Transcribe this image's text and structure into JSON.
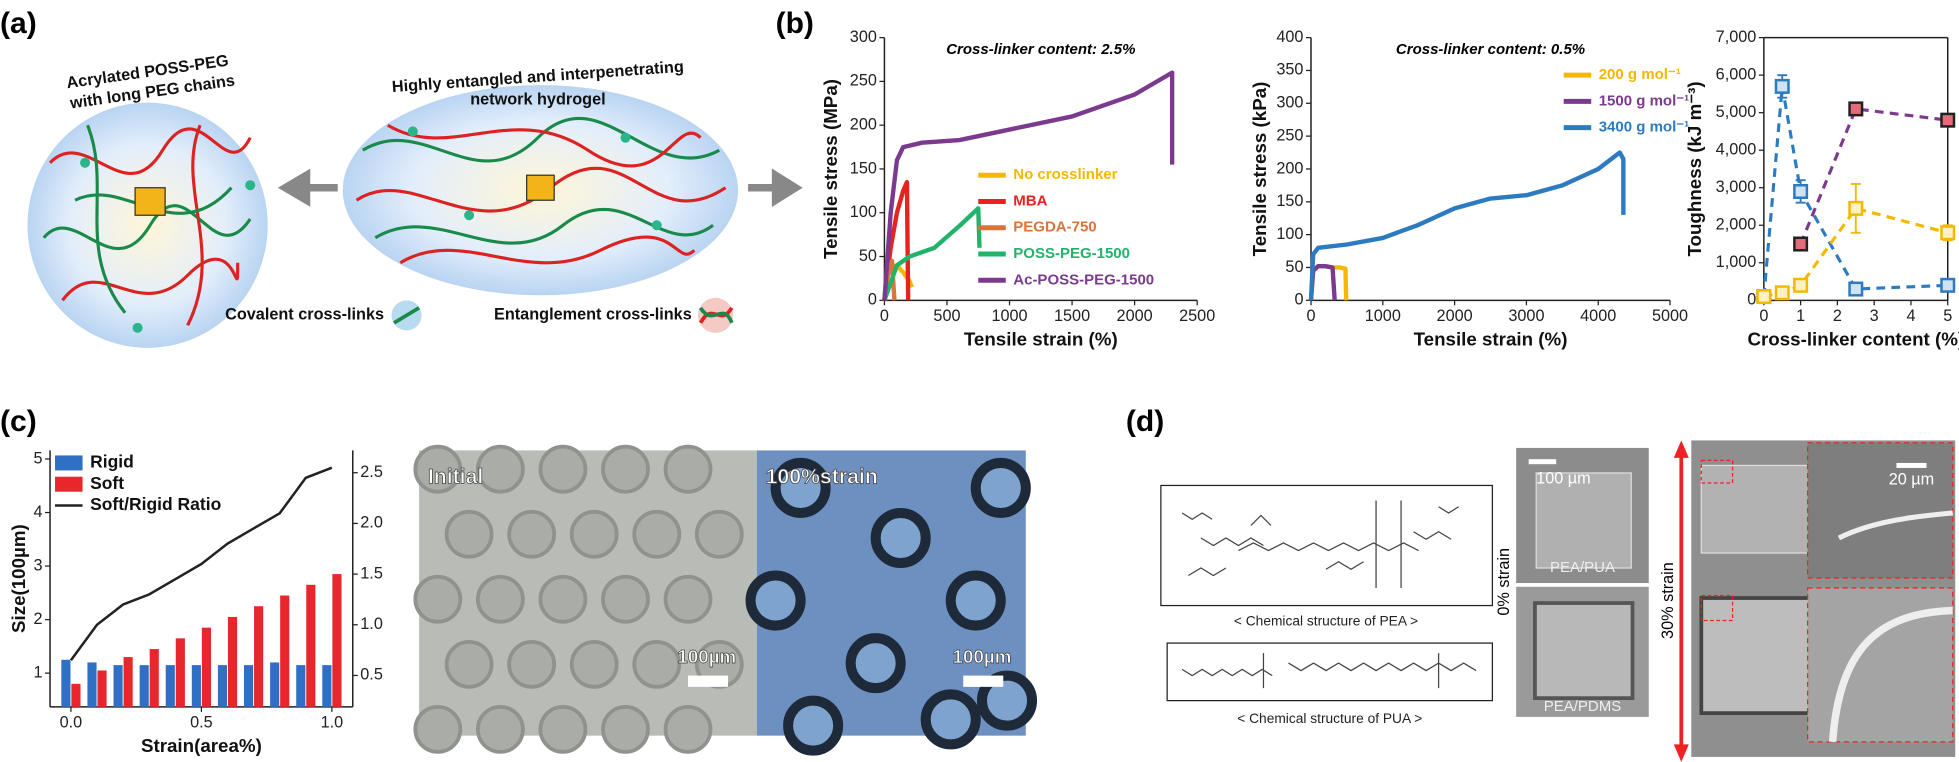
{
  "panel_labels": [
    "(a)",
    "(b)",
    "(c)",
    "(d)"
  ],
  "diagram": {
    "left_title": [
      "Acrylated POSS-PEG",
      "with long PEG chains"
    ],
    "right_title": [
      "Highly entangled and interpenetrating",
      "network hydrogel"
    ],
    "covalent": "Covalent cross-links",
    "entanglement": "Entanglement cross-links"
  },
  "micrographs": {
    "initial": "Initial",
    "strained": "100%strain",
    "scale_left": "100µm",
    "scale_right": "100µm"
  },
  "panel_d": {
    "pea_caption": "< Chemical structure of PEA >",
    "pua_caption": "< Chemical structure of PUA >",
    "scale_small": "100 µm",
    "top_sample": "PEA/PUA",
    "bottom_sample": "PEA/PDMS",
    "strain_0": "0% strain",
    "strain_30": "30% strain",
    "scale_zoom": "20 µm"
  },
  "chart_data": [
    {
      "type": "line",
      "annotation": "Cross-linker content: 2.5%",
      "xlabel": "Tensile strain (%)",
      "ylabel": "Tensile stress (MPa)",
      "xlim": [
        0,
        2500
      ],
      "xticks": [
        0,
        500,
        1000,
        1500,
        2000,
        2500
      ],
      "ylim": [
        0,
        300
      ],
      "yticks": [
        0,
        50,
        100,
        150,
        200,
        250,
        300
      ],
      "legend": "lower right",
      "series": [
        {
          "name": "No crosslinker",
          "color": "#f5b800",
          "x": [
            0,
            20,
            60,
            100,
            150,
            200,
            220
          ],
          "values": [
            0,
            28,
            38,
            40,
            32,
            22,
            15
          ]
        },
        {
          "name": "MBA",
          "color": "#e8231f",
          "x": [
            0,
            50,
            100,
            150,
            180,
            185,
            190
          ],
          "values": [
            0,
            60,
            100,
            125,
            135,
            60,
            0
          ]
        },
        {
          "name": "PEGDA-750",
          "color": "#d9743a",
          "x": [
            0,
            30,
            60,
            80
          ],
          "values": [
            0,
            30,
            45,
            0
          ]
        },
        {
          "name": "POSS-PEG-1500",
          "color": "#22b36b",
          "x": [
            0,
            100,
            200,
            400,
            600,
            750,
            760
          ],
          "values": [
            0,
            40,
            50,
            60,
            85,
            105,
            60
          ]
        },
        {
          "name": "Ac-POSS-PEG-1500",
          "color": "#7b3a8e",
          "x": [
            0,
            50,
            100,
            150,
            300,
            600,
            1000,
            1500,
            2000,
            2300,
            2300
          ],
          "values": [
            0,
            100,
            160,
            175,
            180,
            183,
            195,
            210,
            235,
            260,
            155
          ]
        }
      ]
    },
    {
      "type": "line",
      "annotation": "Cross-linker content: 0.5%",
      "xlabel": "Tensile strain (%)",
      "ylabel": "Tensile stress (kPa)",
      "xlim": [
        0,
        5000
      ],
      "xticks": [
        0,
        1000,
        2000,
        3000,
        4000,
        5000
      ],
      "ylim": [
        0,
        400
      ],
      "yticks": [
        0,
        50,
        100,
        150,
        200,
        250,
        300,
        350,
        400
      ],
      "legend": "upper right",
      "series": [
        {
          "name": "200 g mol⁻¹",
          "color": "#f5b800",
          "x": [
            0,
            30,
            100,
            200,
            300,
            400,
            480,
            490
          ],
          "values": [
            0,
            45,
            52,
            52,
            50,
            50,
            48,
            0
          ]
        },
        {
          "name": "1500 g mol⁻¹",
          "color": "#7b3a8e",
          "x": [
            0,
            30,
            100,
            200,
            300,
            330
          ],
          "values": [
            0,
            45,
            52,
            52,
            50,
            0
          ]
        },
        {
          "name": "3400 g mol⁻¹",
          "color": "#2c7bc0",
          "x": [
            0,
            30,
            100,
            500,
            1000,
            1500,
            2000,
            2500,
            3000,
            3500,
            4000,
            4300,
            4350,
            4350
          ],
          "values": [
            0,
            70,
            80,
            85,
            95,
            115,
            140,
            155,
            160,
            175,
            200,
            225,
            215,
            130
          ]
        }
      ]
    },
    {
      "type": "line",
      "xlabel": "Cross-linker content (%)",
      "ylabel": "Toughness (kJ m⁻³)",
      "xlim": [
        0,
        5
      ],
      "xticks": [
        0,
        1,
        2,
        3,
        4,
        5
      ],
      "ylim": [
        0,
        7000
      ],
      "yticks": [
        0,
        {
          "value": 1000,
          "label": "1,000"
        },
        {
          "value": 2000,
          "label": "2,000"
        },
        {
          "value": 3000,
          "label": "3,000"
        },
        {
          "value": 4000,
          "label": "4,000"
        },
        {
          "value": 5000,
          "label": "5,000"
        },
        {
          "value": 6000,
          "label": "6,000"
        },
        {
          "value": 7000,
          "label": "7,000"
        }
      ],
      "line_style": "dashed",
      "markers": "square",
      "series": [
        {
          "color": "#2c7bc0",
          "marker_color": "#cfe3f5",
          "x": [
            0,
            0.5,
            1,
            2.5,
            5
          ],
          "values": [
            100,
            5700,
            2900,
            300,
            400
          ],
          "errors": [
            null,
            300,
            300,
            null,
            null
          ]
        },
        {
          "color": "#f5b800",
          "marker_color": "#fff2c0",
          "x": [
            0,
            0.5,
            1,
            2.5,
            5
          ],
          "values": [
            100,
            200,
            400,
            2450,
            1800
          ],
          "errors": [
            null,
            null,
            null,
            650,
            200
          ]
        },
        {
          "color": "#7b3a8e",
          "marker_color": "#e46b78",
          "x": [
            1,
            2.5,
            5
          ],
          "values": [
            1500,
            5100,
            4800
          ]
        }
      ]
    },
    {
      "type": "bar",
      "xlabel": "Strain(area%)",
      "ylabel": "Size(100µm)",
      "x": [
        0,
        0.1,
        0.2,
        0.3,
        0.4,
        0.5,
        0.6,
        0.7,
        0.8,
        0.9,
        1.0
      ],
      "xlim": [
        -0.08,
        1.08
      ],
      "xticks": [
        {
          "value": 0,
          "label": "0.0"
        },
        0.5,
        {
          "value": 1,
          "label": "1.0"
        }
      ],
      "ylim": [
        0.37,
        5.16
      ],
      "yticks": [
        1,
        2,
        3,
        4,
        5
      ],
      "y2lim": [
        0.19,
        2.72
      ],
      "y2ticks": [
        0.5,
        {
          "value": 1,
          "label": "1.0"
        },
        1.5,
        {
          "value": 2,
          "label": "2.0"
        },
        2.5
      ],
      "legend": "upper left",
      "series": [
        {
          "name": "Rigid",
          "color": "#2f6fc4",
          "values": [
            1.25,
            1.2,
            1.15,
            1.15,
            1.15,
            1.15,
            1.15,
            1.15,
            1.2,
            1.15,
            1.15
          ]
        },
        {
          "name": "Soft",
          "color": "#e8262c",
          "values": [
            0.8,
            1.05,
            1.3,
            1.45,
            1.65,
            1.85,
            2.05,
            2.25,
            2.45,
            2.65,
            2.85
          ]
        },
        {
          "name": "Soft/Rigid Ratio",
          "color": "#222222",
          "type": "line",
          "axis": "y2",
          "values": [
            0.65,
            1.0,
            1.2,
            1.3,
            1.45,
            1.6,
            1.8,
            1.95,
            2.1,
            2.45,
            2.55
          ]
        }
      ]
    }
  ]
}
